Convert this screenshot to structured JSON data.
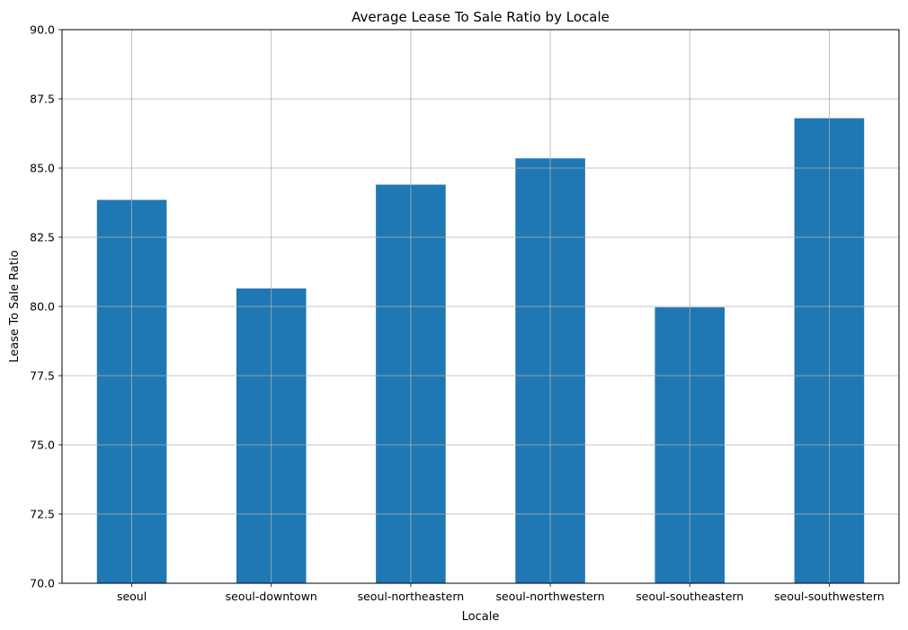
{
  "chart_data": {
    "type": "bar",
    "title": "Average Lease To Sale Ratio by Locale",
    "xlabel": "Locale",
    "ylabel": "Lease To Sale Ratio",
    "categories": [
      "seoul",
      "seoul-downtown",
      "seoul-northeastern",
      "seoul-northwestern",
      "seoul-southeastern",
      "seoul-southwestern"
    ],
    "values": [
      83.85,
      80.65,
      84.4,
      85.35,
      79.97,
      86.8
    ],
    "ylim": [
      70,
      90
    ],
    "yticks": [
      "70.0",
      "72.5",
      "75.0",
      "77.5",
      "80.0",
      "82.5",
      "85.0",
      "87.5",
      "90.0"
    ],
    "grid": true,
    "bar_color": "#1f77b4",
    "grid_color": "#b0b0b0"
  }
}
